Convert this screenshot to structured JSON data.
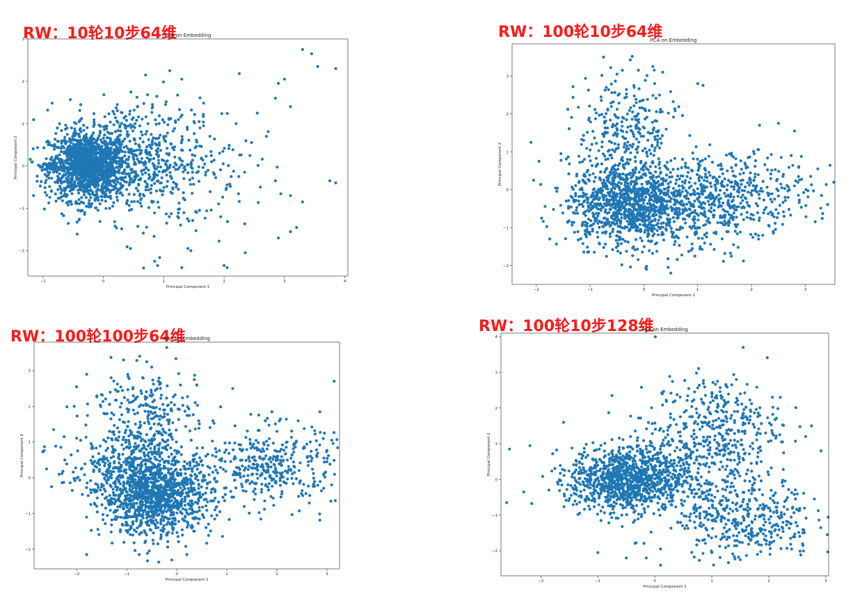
{
  "panels": [
    {
      "label": "RW：10轮10步64维"
    },
    {
      "label": "RW：100轮10步64维"
    },
    {
      "label": "RW：100轮100步64维"
    },
    {
      "label": "RW：100轮10步128维"
    }
  ],
  "chart_data": [
    {
      "type": "scatter",
      "title": "PCA on Embedding",
      "xlabel": "Principal Component 1",
      "ylabel": "Principal Component 2",
      "xlim": [
        -1.25,
        4.05
      ],
      "ylim": [
        -2.6,
        3.0
      ],
      "xticks": [
        -1,
        0,
        1,
        2,
        3,
        4
      ],
      "yticks": [
        -2,
        -1,
        0,
        1,
        2,
        3
      ],
      "color": "#1f77b4",
      "grid": false,
      "legend": "none",
      "points": [
        [
          3.3,
          2.75
        ],
        [
          3.45,
          2.65
        ],
        [
          3.55,
          2.35
        ],
        [
          3.85,
          2.3
        ],
        [
          3.0,
          2.05
        ],
        [
          2.9,
          1.95
        ],
        [
          2.85,
          1.6
        ],
        [
          3.1,
          1.4
        ],
        [
          3.75,
          -0.35
        ],
        [
          3.85,
          -0.4
        ],
        [
          3.1,
          -0.7
        ],
        [
          3.3,
          -0.85
        ],
        [
          3.2,
          -1.45
        ],
        [
          3.1,
          -1.55
        ],
        [
          2.9,
          -1.7
        ],
        [
          2.05,
          -2.4
        ],
        [
          2.0,
          -2.35
        ],
        [
          2.35,
          -2.05
        ],
        [
          1.45,
          -2.0
        ],
        [
          1.4,
          -1.95
        ],
        [
          2.55,
          1.25
        ],
        [
          2.2,
          1.0
        ],
        [
          2.7,
          0.7
        ],
        [
          2.85,
          -0.35
        ],
        [
          2.6,
          -0.5
        ],
        [
          1.1,
          2.25
        ],
        [
          0.7,
          2.15
        ],
        [
          1.3,
          2.05
        ],
        [
          1.3,
          -2.4
        ],
        [
          0.9,
          -2.35
        ],
        [
          0.85,
          -2.25
        ],
        [
          1.05,
          -1.35
        ],
        [
          0.45,
          -1.95
        ],
        [
          1.5,
          1.05
        ],
        [
          1.6,
          0.9
        ]
      ]
    },
    {
      "type": "scatter",
      "title": "PCA on Embedding",
      "xlabel": "Principal Component 1",
      "ylabel": "Principal Component 2",
      "xlim": [
        -2.45,
        3.55
      ],
      "ylim": [
        -2.5,
        3.85
      ],
      "xticks": [
        -2,
        -1,
        0,
        1,
        2,
        3
      ],
      "yticks": [
        -2,
        -1,
        0,
        1,
        2,
        3
      ],
      "color": "#1f77b4",
      "grid": false,
      "legend": "none",
      "points": [
        [
          -0.75,
          3.5
        ],
        [
          -0.4,
          3.15
        ],
        [
          -0.5,
          3.05
        ],
        [
          0.35,
          3.1
        ],
        [
          0.2,
          2.8
        ],
        [
          1.0,
          2.8
        ],
        [
          1.1,
          2.75
        ],
        [
          2.15,
          1.7
        ],
        [
          2.5,
          1.75
        ],
        [
          2.8,
          1.55
        ],
        [
          3.3,
          -0.15
        ],
        [
          3.1,
          0.35
        ],
        [
          -2.1,
          1.25
        ],
        [
          -1.95,
          0.75
        ],
        [
          -2.05,
          0.25
        ],
        [
          -1.9,
          -0.75
        ],
        [
          -1.75,
          -1.3
        ],
        [
          0.45,
          -2.05
        ],
        [
          0.5,
          -2.2
        ],
        [
          0.05,
          -2.1
        ]
      ]
    },
    {
      "type": "scatter",
      "title": "PCA on Embedding",
      "xlabel": "Principal Component 1",
      "ylabel": "Principal Component 2",
      "xlim": [
        -2.85,
        3.25
      ],
      "ylim": [
        -2.55,
        3.8
      ],
      "xticks": [
        -2,
        -1,
        0,
        1,
        2,
        3
      ],
      "yticks": [
        -2,
        -1,
        0,
        1,
        2,
        3
      ],
      "color": "#1f77b4",
      "grid": false,
      "legend": "none",
      "points": [
        [
          -0.2,
          3.65
        ],
        [
          -0.6,
          3.25
        ],
        [
          -0.5,
          3.1
        ],
        [
          0.35,
          2.75
        ],
        [
          0.4,
          2.6
        ],
        [
          -1.8,
          2.9
        ],
        [
          -2.6,
          0.25
        ],
        [
          -2.35,
          0.1
        ],
        [
          -2.5,
          -0.25
        ],
        [
          -2.25,
          1.15
        ],
        [
          -2.05,
          2.0
        ],
        [
          -1.8,
          -2.15
        ],
        [
          -0.75,
          -2.15
        ],
        [
          -0.1,
          -2.3
        ],
        [
          -0.55,
          -2.05
        ],
        [
          2.95,
          1.25
        ],
        [
          3.0,
          0.45
        ],
        [
          3.15,
          0.1
        ],
        [
          1.9,
          1.85
        ],
        [
          2.0,
          1.3
        ],
        [
          0.2,
          -2.15
        ]
      ]
    },
    {
      "type": "scatter",
      "title": "PCA on Embedding",
      "xlabel": "Principal Component 1",
      "ylabel": "Principal Component 2",
      "xlim": [
        -2.7,
        3.05
      ],
      "ylim": [
        -2.7,
        4.1
      ],
      "xticks": [
        -2,
        -1,
        0,
        1,
        2,
        3
      ],
      "yticks": [
        -2,
        -1,
        0,
        1,
        2,
        3,
        4
      ],
      "color": "#1f77b4",
      "grid": false,
      "legend": "none",
      "points": [
        [
          1.55,
          3.7
        ],
        [
          1.1,
          2.75
        ],
        [
          1.35,
          2.65
        ],
        [
          2.2,
          2.3
        ],
        [
          1.5,
          2.4
        ],
        [
          2.75,
          1.5
        ],
        [
          -2.55,
          0.85
        ],
        [
          -2.6,
          -0.65
        ],
        [
          -2.3,
          -0.35
        ],
        [
          -1.6,
          1.6
        ],
        [
          -0.75,
          2.35
        ],
        [
          -1.0,
          -2.05
        ],
        [
          -0.5,
          -2.2
        ],
        [
          0.1,
          -2.4
        ],
        [
          -0.15,
          -2.2
        ],
        [
          2.8,
          -0.55
        ],
        [
          2.6,
          -1.85
        ],
        [
          2.4,
          -1.95
        ],
        [
          1.8,
          -2.1
        ],
        [
          1.5,
          -2.25
        ],
        [
          1.0,
          -2.05
        ]
      ]
    }
  ]
}
